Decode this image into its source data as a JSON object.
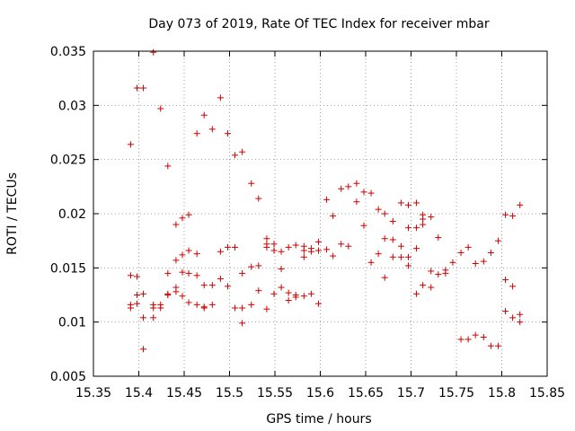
{
  "chart_data": {
    "type": "scatter",
    "title": "Day 073 of 2019, Rate Of TEC Index for receiver mbar",
    "xlabel": "GPS time / hours",
    "ylabel": "ROTI / TECUs",
    "xlim": [
      15.35,
      15.85
    ],
    "ylim": [
      0.005,
      0.035
    ],
    "xticks": [
      "15.35",
      "15.4",
      "15.45",
      "15.5",
      "15.55",
      "15.6",
      "15.65",
      "15.7",
      "15.75",
      "15.8",
      "15.85"
    ],
    "yticks": [
      "0.005",
      "0.01",
      "0.015",
      "0.02",
      "0.025",
      "0.03",
      "0.035"
    ],
    "grid": true,
    "marker": "+",
    "series": [
      {
        "name": "ROTI",
        "color": "#cc0000",
        "points": [
          [
            15.391,
            0.0264
          ],
          [
            15.391,
            0.0143
          ],
          [
            15.391,
            0.0116
          ],
          [
            15.391,
            0.0113
          ],
          [
            15.398,
            0.0316
          ],
          [
            15.398,
            0.0142
          ],
          [
            15.398,
            0.0125
          ],
          [
            15.398,
            0.0117
          ],
          [
            15.405,
            0.0316
          ],
          [
            15.405,
            0.0126
          ],
          [
            15.405,
            0.0104
          ],
          [
            15.405,
            0.0075
          ],
          [
            15.416,
            0.0349
          ],
          [
            15.416,
            0.0116
          ],
          [
            15.416,
            0.0113
          ],
          [
            15.416,
            0.0104
          ],
          [
            15.424,
            0.0297
          ],
          [
            15.424,
            0.0116
          ],
          [
            15.424,
            0.0113
          ],
          [
            15.432,
            0.0244
          ],
          [
            15.432,
            0.0145
          ],
          [
            15.432,
            0.0126
          ],
          [
            15.432,
            0.0125
          ],
          [
            15.441,
            0.019
          ],
          [
            15.441,
            0.0157
          ],
          [
            15.441,
            0.0132
          ],
          [
            15.441,
            0.0128
          ],
          [
            15.448,
            0.0196
          ],
          [
            15.448,
            0.0162
          ],
          [
            15.448,
            0.0146
          ],
          [
            15.448,
            0.0124
          ],
          [
            15.455,
            0.0199
          ],
          [
            15.455,
            0.0166
          ],
          [
            15.455,
            0.0145
          ],
          [
            15.455,
            0.0118
          ],
          [
            15.464,
            0.0274
          ],
          [
            15.464,
            0.0163
          ],
          [
            15.464,
            0.0143
          ],
          [
            15.464,
            0.0116
          ],
          [
            15.472,
            0.0291
          ],
          [
            15.472,
            0.0134
          ],
          [
            15.472,
            0.0114
          ],
          [
            15.472,
            0.0113
          ],
          [
            15.481,
            0.0278
          ],
          [
            15.481,
            0.0134
          ],
          [
            15.481,
            0.0116
          ],
          [
            15.49,
            0.0307
          ],
          [
            15.49,
            0.0165
          ],
          [
            15.49,
            0.014
          ],
          [
            15.498,
            0.0274
          ],
          [
            15.498,
            0.0169
          ],
          [
            15.498,
            0.0133
          ],
          [
            15.506,
            0.0254
          ],
          [
            15.506,
            0.0169
          ],
          [
            15.506,
            0.0113
          ],
          [
            15.514,
            0.0257
          ],
          [
            15.514,
            0.0145
          ],
          [
            15.514,
            0.0113
          ],
          [
            15.514,
            0.0099
          ],
          [
            15.524,
            0.0228
          ],
          [
            15.524,
            0.0151
          ],
          [
            15.524,
            0.0116
          ],
          [
            15.532,
            0.0214
          ],
          [
            15.532,
            0.0152
          ],
          [
            15.532,
            0.0129
          ],
          [
            15.541,
            0.0177
          ],
          [
            15.541,
            0.0172
          ],
          [
            15.541,
            0.0169
          ],
          [
            15.541,
            0.0112
          ],
          [
            15.549,
            0.0172
          ],
          [
            15.549,
            0.0166
          ],
          [
            15.549,
            0.0126
          ],
          [
            15.557,
            0.0165
          ],
          [
            15.557,
            0.0149
          ],
          [
            15.557,
            0.0132
          ],
          [
            15.565,
            0.0169
          ],
          [
            15.565,
            0.0127
          ],
          [
            15.565,
            0.012
          ],
          [
            15.573,
            0.0171
          ],
          [
            15.573,
            0.0125
          ],
          [
            15.573,
            0.0123
          ],
          [
            15.582,
            0.017
          ],
          [
            15.582,
            0.0166
          ],
          [
            15.582,
            0.016
          ],
          [
            15.582,
            0.0124
          ],
          [
            15.59,
            0.0168
          ],
          [
            15.59,
            0.0165
          ],
          [
            15.59,
            0.0126
          ],
          [
            15.598,
            0.0174
          ],
          [
            15.598,
            0.0166
          ],
          [
            15.598,
            0.0117
          ],
          [
            15.607,
            0.0213
          ],
          [
            15.607,
            0.0167
          ],
          [
            15.614,
            0.0198
          ],
          [
            15.614,
            0.0161
          ],
          [
            15.623,
            0.0223
          ],
          [
            15.623,
            0.0172
          ],
          [
            15.631,
            0.0225
          ],
          [
            15.631,
            0.017
          ],
          [
            15.64,
            0.0228
          ],
          [
            15.64,
            0.0211
          ],
          [
            15.648,
            0.022
          ],
          [
            15.648,
            0.0189
          ],
          [
            15.656,
            0.0219
          ],
          [
            15.656,
            0.0155
          ],
          [
            15.664,
            0.0204
          ],
          [
            15.664,
            0.0163
          ],
          [
            15.671,
            0.02
          ],
          [
            15.671,
            0.0177
          ],
          [
            15.671,
            0.0141
          ],
          [
            15.68,
            0.0193
          ],
          [
            15.68,
            0.0176
          ],
          [
            15.68,
            0.016
          ],
          [
            15.689,
            0.021
          ],
          [
            15.689,
            0.017
          ],
          [
            15.689,
            0.016
          ],
          [
            15.697,
            0.0208
          ],
          [
            15.697,
            0.0187
          ],
          [
            15.697,
            0.016
          ],
          [
            15.697,
            0.0152
          ],
          [
            15.706,
            0.021
          ],
          [
            15.706,
            0.0187
          ],
          [
            15.706,
            0.0168
          ],
          [
            15.706,
            0.0126
          ],
          [
            15.713,
            0.0199
          ],
          [
            15.713,
            0.0195
          ],
          [
            15.713,
            0.019
          ],
          [
            15.713,
            0.0134
          ],
          [
            15.722,
            0.0197
          ],
          [
            15.722,
            0.0147
          ],
          [
            15.722,
            0.0132
          ],
          [
            15.73,
            0.0178
          ],
          [
            15.73,
            0.0144
          ],
          [
            15.738,
            0.0148
          ],
          [
            15.738,
            0.0145
          ],
          [
            15.746,
            0.0155
          ],
          [
            15.755,
            0.0164
          ],
          [
            15.755,
            0.0084
          ],
          [
            15.763,
            0.0169
          ],
          [
            15.763,
            0.0084
          ],
          [
            15.771,
            0.0154
          ],
          [
            15.771,
            0.0088
          ],
          [
            15.78,
            0.0156
          ],
          [
            15.78,
            0.0086
          ],
          [
            15.788,
            0.0164
          ],
          [
            15.788,
            0.0078
          ],
          [
            15.796,
            0.0175
          ],
          [
            15.796,
            0.0078
          ],
          [
            15.804,
            0.0199
          ],
          [
            15.804,
            0.0139
          ],
          [
            15.804,
            0.011
          ],
          [
            15.812,
            0.0198
          ],
          [
            15.812,
            0.0133
          ],
          [
            15.812,
            0.0104
          ],
          [
            15.82,
            0.0208
          ],
          [
            15.82,
            0.0107
          ],
          [
            15.82,
            0.01
          ]
        ]
      }
    ]
  }
}
